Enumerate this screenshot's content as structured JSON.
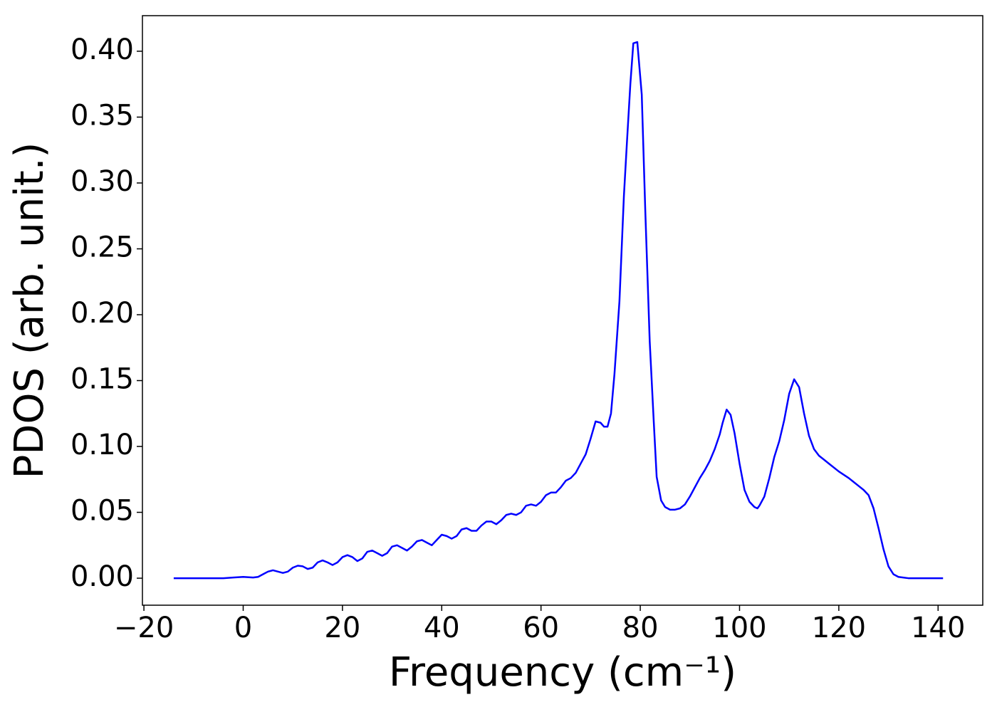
{
  "chart_data": {
    "type": "line",
    "xlabel": "Frequency (cm⁻¹)",
    "ylabel": "PDOS (arb. unit.)",
    "x": [
      -14,
      -4,
      -2,
      0,
      2,
      3,
      4,
      5,
      6,
      7,
      8,
      9,
      10,
      11,
      12,
      13,
      14,
      15,
      16,
      17,
      18,
      19,
      20,
      21,
      22,
      23,
      24,
      25,
      26,
      27,
      28,
      29,
      30,
      31,
      32,
      33,
      34,
      35,
      36,
      37,
      38,
      39,
      40,
      41,
      42,
      43,
      44,
      45,
      46,
      47,
      48,
      49,
      50,
      51,
      52,
      53,
      54,
      55,
      56,
      57,
      58,
      59,
      60,
      61,
      62,
      63,
      64,
      65,
      66,
      67,
      68,
      69,
      70,
      71,
      72,
      72.7,
      73.4,
      74.1,
      74.8,
      75.8,
      76.7,
      77.3,
      78,
      78.6,
      79.4,
      80.3,
      81,
      81.9,
      82.7,
      83.3,
      84.2,
      85,
      86,
      87,
      88,
      89,
      90,
      91,
      92,
      93,
      94,
      95,
      96,
      96.6,
      97.4,
      98.2,
      99,
      100,
      101,
      102,
      103,
      103.6,
      104,
      105,
      106,
      107,
      108,
      109,
      110,
      111,
      112,
      113,
      114,
      115,
      116,
      117,
      118,
      120,
      122,
      123,
      124,
      125,
      126,
      127,
      128,
      129,
      130,
      131,
      132,
      134,
      141
    ],
    "series": [
      {
        "name": "PDOS",
        "color": "#0000ff",
        "values": [
          0,
          0,
          0.0005,
          0.001,
          0.0005,
          0.001,
          0.003,
          0.005,
          0.006,
          0.005,
          0.004,
          0.005,
          0.008,
          0.0095,
          0.009,
          0.007,
          0.008,
          0.012,
          0.0135,
          0.012,
          0.01,
          0.012,
          0.016,
          0.0175,
          0.016,
          0.013,
          0.015,
          0.02,
          0.021,
          0.019,
          0.017,
          0.019,
          0.024,
          0.025,
          0.023,
          0.021,
          0.024,
          0.028,
          0.029,
          0.027,
          0.025,
          0.029,
          0.033,
          0.032,
          0.03,
          0.032,
          0.037,
          0.038,
          0.036,
          0.036,
          0.04,
          0.043,
          0.043,
          0.041,
          0.044,
          0.048,
          0.049,
          0.048,
          0.05,
          0.055,
          0.056,
          0.055,
          0.058,
          0.063,
          0.065,
          0.065,
          0.069,
          0.074,
          0.076,
          0.08,
          0.087,
          0.094,
          0.106,
          0.119,
          0.118,
          0.115,
          0.115,
          0.125,
          0.155,
          0.21,
          0.29,
          0.33,
          0.375,
          0.406,
          0.407,
          0.367,
          0.28,
          0.18,
          0.12,
          0.077,
          0.059,
          0.054,
          0.052,
          0.052,
          0.053,
          0.056,
          0.062,
          0.069,
          0.076,
          0.082,
          0.089,
          0.098,
          0.109,
          0.118,
          0.128,
          0.124,
          0.11,
          0.087,
          0.067,
          0.058,
          0.054,
          0.053,
          0.055,
          0.062,
          0.076,
          0.092,
          0.104,
          0.12,
          0.14,
          0.151,
          0.145,
          0.125,
          0.108,
          0.098,
          0.093,
          0.09,
          0.087,
          0.081,
          0.076,
          0.073,
          0.07,
          0.067,
          0.063,
          0.053,
          0.038,
          0.022,
          0.009,
          0.003,
          0.001,
          0,
          0
        ]
      }
    ],
    "xlim": [
      -20.3,
      149.0
    ],
    "ylim": [
      -0.0205,
      0.427
    ],
    "xticks": [
      {
        "value": -20,
        "label": "−20"
      },
      0,
      20,
      40,
      60,
      80,
      100,
      120,
      140
    ],
    "yticks": [
      {
        "value": 0,
        "label": "0.00"
      },
      {
        "value": 0.05,
        "label": "0.05"
      },
      {
        "value": 0.1,
        "label": "0.10"
      },
      {
        "value": 0.15,
        "label": "0.15"
      },
      {
        "value": 0.2,
        "label": "0.20"
      },
      {
        "value": 0.25,
        "label": "0.25"
      },
      {
        "value": 0.3,
        "label": "0.30"
      },
      {
        "value": 0.35,
        "label": "0.35"
      },
      {
        "value": 0.4,
        "label": "0.40"
      }
    ],
    "grid": false
  }
}
